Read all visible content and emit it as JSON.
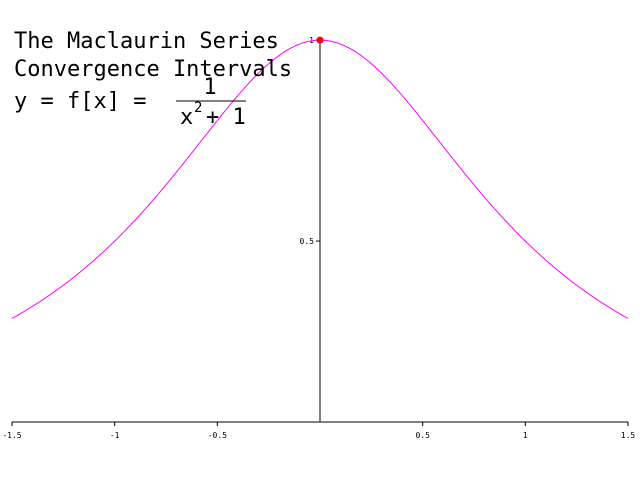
{
  "chart_data": {
    "type": "line",
    "title_lines": [
      "The Maclaurin Series",
      "Convergence Intervals"
    ],
    "formula": {
      "lhs": "y = f[x] =",
      "numerator": "1",
      "denominator_base": "x",
      "denominator_exponent": "2",
      "denominator_rest": "+ 1"
    },
    "function": "1/(x^2+1)",
    "xlim": [
      -1.5,
      1.5
    ],
    "ylim": [
      0.05,
      1.05
    ],
    "x_ticks": [
      {
        "value": -1.5,
        "label": "-1.5"
      },
      {
        "value": -1,
        "label": "-1"
      },
      {
        "value": -0.5,
        "label": "-0.5"
      },
      {
        "value": 0.5,
        "label": "0.5"
      },
      {
        "value": 1,
        "label": "1"
      },
      {
        "value": 1.5,
        "label": "1.5"
      }
    ],
    "y_ticks": [
      {
        "value": 0.5,
        "label": "0.5"
      },
      {
        "value": 1,
        "label": "1"
      }
    ],
    "series": [
      {
        "color": "#ff00ff",
        "x": [
          -1.5,
          -1.25,
          -1.0,
          -0.75,
          -0.5,
          -0.25,
          0.0,
          0.25,
          0.5,
          0.75,
          1.0,
          1.25,
          1.5
        ],
        "y": [
          0.3077,
          0.3902,
          0.5,
          0.64,
          0.8,
          0.9412,
          1.0,
          0.9412,
          0.8,
          0.64,
          0.5,
          0.3902,
          0.3077
        ]
      }
    ],
    "highlight_point": {
      "x": 0,
      "y": 1,
      "color": "#ff0000"
    },
    "axis_color": "#000000",
    "grid": false
  }
}
